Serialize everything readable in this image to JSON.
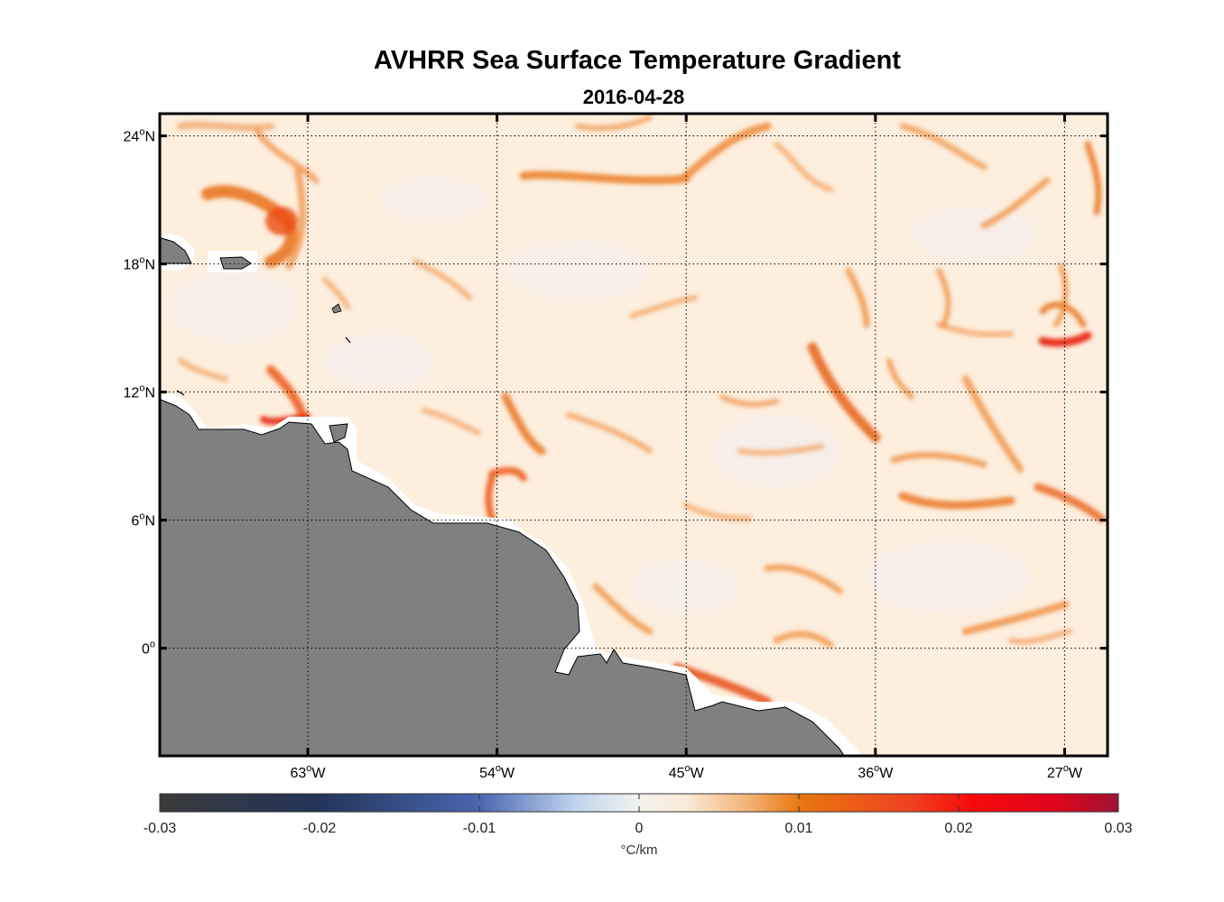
{
  "title": "AVHRR Sea Surface Temperature Gradient",
  "subtitle": "2016-04-28",
  "colors": {
    "land": "#808080",
    "coast_buffer": "#ffffff",
    "ocean_background": "#fdeedd",
    "gradient_low": "#f08a28",
    "gradient_mid": "#e85a10",
    "gradient_high": "#e8200c"
  },
  "map": {
    "lon_range": [
      -70,
      -25
    ],
    "lat_range": [
      -5,
      25
    ],
    "lat_ticks": [
      {
        "value": 24,
        "deg": "24",
        "hemi": "N"
      },
      {
        "value": 18,
        "deg": "18",
        "hemi": "N"
      },
      {
        "value": 12,
        "deg": "12",
        "hemi": "N"
      },
      {
        "value": 6,
        "deg": "6",
        "hemi": "N"
      },
      {
        "value": 0,
        "deg": "0",
        "hemi": ""
      }
    ],
    "lon_ticks": [
      {
        "value": -63,
        "deg": "63",
        "hemi": "W"
      },
      {
        "value": -54,
        "deg": "54",
        "hemi": "W"
      },
      {
        "value": -45,
        "deg": "45",
        "hemi": "W"
      },
      {
        "value": -36,
        "deg": "36",
        "hemi": "W"
      },
      {
        "value": -27,
        "deg": "27",
        "hemi": "W"
      }
    ],
    "grid": "dotted"
  },
  "colorbar": {
    "ticks": [
      "-0.03",
      "-0.02",
      "-0.01",
      "0",
      "0.01",
      "0.02",
      "0.03"
    ],
    "tick_values": [
      -0.03,
      -0.02,
      -0.01,
      0,
      0.01,
      0.02,
      0.03
    ],
    "range": [
      -0.03,
      0.03
    ],
    "unit": "°C/km",
    "stops": [
      {
        "value": -0.03,
        "color": "#3a3a3a"
      },
      {
        "value": -0.02,
        "color": "#23355a"
      },
      {
        "value": -0.01,
        "color": "#4a66b0"
      },
      {
        "value": -0.004,
        "color": "#c0d4ee"
      },
      {
        "value": 0,
        "color": "#f2f3ee"
      },
      {
        "value": 0.003,
        "color": "#fbe9d6"
      },
      {
        "value": 0.007,
        "color": "#f2b070"
      },
      {
        "value": 0.01,
        "color": "#e87810"
      },
      {
        "value": 0.017,
        "color": "#f04020"
      },
      {
        "value": 0.021,
        "color": "#f50a0a"
      },
      {
        "value": 0.026,
        "color": "#e0041c"
      },
      {
        "value": 0.03,
        "color": "#a01432"
      }
    ]
  }
}
